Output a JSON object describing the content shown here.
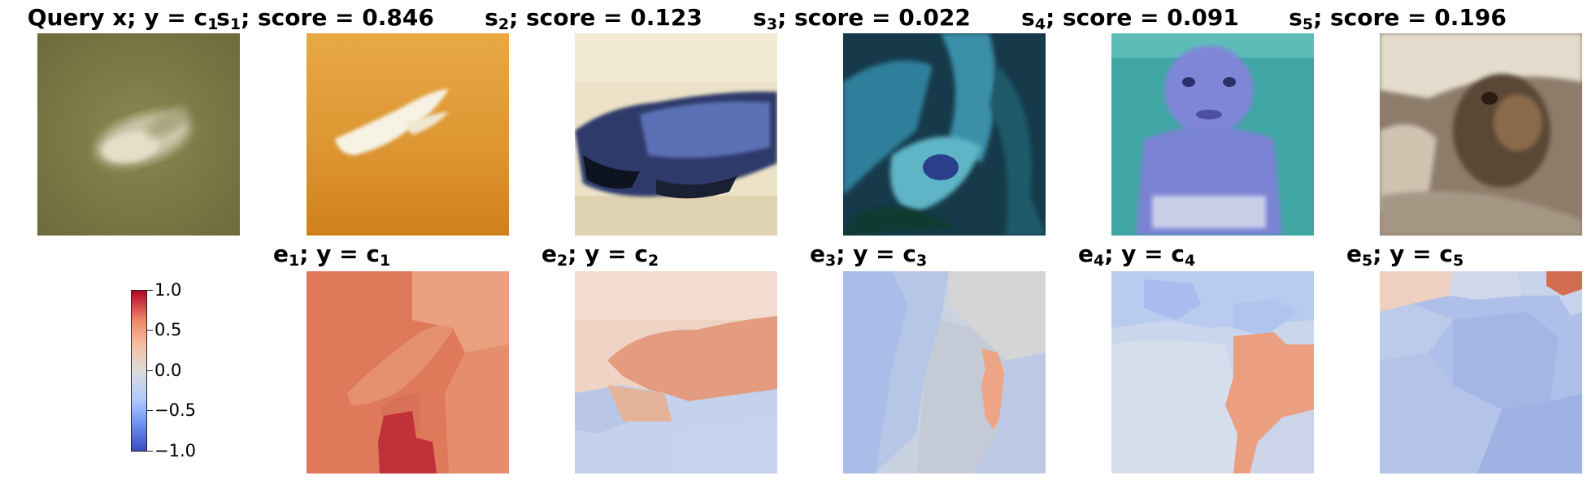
{
  "top_row": [
    {
      "prefix": "Query x; y = c",
      "sub": "1",
      "suffix": "",
      "image": "blurry-dolphin-on-olive-background"
    },
    {
      "prefix": "s",
      "sub": "1",
      "suffix": "; score = 0.846",
      "image": "white-dolphin-on-orange-background"
    },
    {
      "prefix": "s",
      "sub": "2",
      "suffix": "; score = 0.123",
      "image": "blue-bird-on-cream-background"
    },
    {
      "prefix": "s",
      "sub": "3",
      "suffix": "; score = 0.022",
      "image": "teal-animal-closeup"
    },
    {
      "prefix": "s",
      "sub": "4",
      "suffix": "; score = 0.091",
      "image": "blue-tinted-baby"
    },
    {
      "prefix": "s",
      "sub": "5",
      "suffix": "; score = 0.196",
      "image": "brown-animal-face"
    }
  ],
  "bottom_row": [
    {
      "prefix": "e",
      "sub": "1",
      "mid": "; y = c",
      "sub2": "1",
      "image": "explanation-heatmap-1"
    },
    {
      "prefix": "e",
      "sub": "2",
      "mid": "; y = c",
      "sub2": "2",
      "image": "explanation-heatmap-2"
    },
    {
      "prefix": "e",
      "sub": "3",
      "mid": "; y = c",
      "sub2": "3",
      "image": "explanation-heatmap-3"
    },
    {
      "prefix": "e",
      "sub": "4",
      "mid": "; y = c",
      "sub2": "4",
      "image": "explanation-heatmap-4"
    },
    {
      "prefix": "e",
      "sub": "5",
      "mid": "; y = c",
      "sub2": "5",
      "image": "explanation-heatmap-5"
    }
  ],
  "colorbar": {
    "ticks": [
      "1.0",
      "0.5",
      "0.0",
      "−0.5",
      "−1.0"
    ],
    "colors": {
      "high": "#b40426",
      "mid": "#dddcdc",
      "low": "#3b4cc0"
    }
  }
}
